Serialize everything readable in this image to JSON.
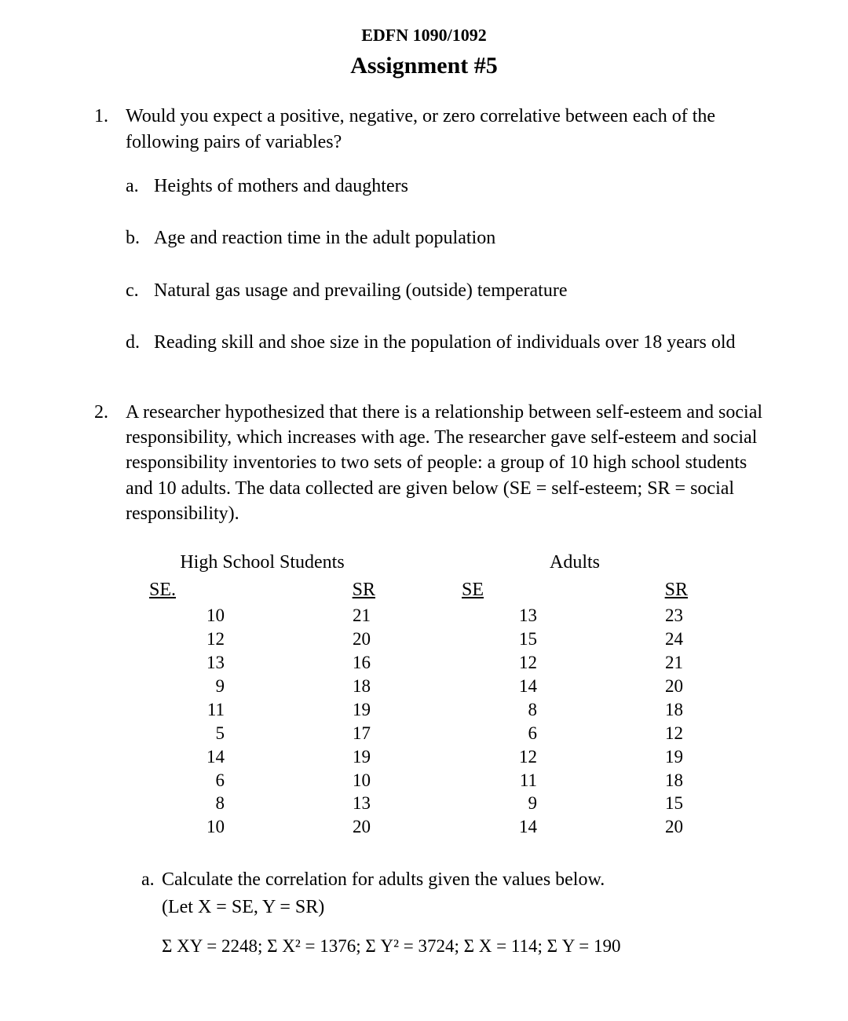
{
  "header": {
    "course_code": "EDFN 1090/1092",
    "title": "Assignment #5"
  },
  "questions": [
    {
      "number": "1.",
      "text": "Would you expect a positive, negative, or zero correlative between each of the following pairs of variables?",
      "subitems": [
        {
          "marker": "a.",
          "text": "Heights of mothers and daughters"
        },
        {
          "marker": "b.",
          "text": "Age and reaction time in the adult population"
        },
        {
          "marker": "c.",
          "text": "Natural gas usage and prevailing (outside) temperature"
        },
        {
          "marker": "d.",
          "text": "Reading skill and shoe size in the population of individuals over 18 years old"
        }
      ]
    },
    {
      "number": "2.",
      "text": "A researcher hypothesized that there is a relationship between self-esteem and social responsibility, which increases with age. The researcher gave self-esteem and social responsibility inventories to two sets of people: a group of 10 high school students and 10 adults. The data collected are given below (SE = self-esteem; SR = social responsibility)."
    }
  ],
  "tables": {
    "type": "table",
    "font_size": 23,
    "text_color": "#000000",
    "high_school": {
      "title": "High School Students",
      "columns": [
        "SE.",
        "SR"
      ],
      "rows": [
        [
          10,
          21
        ],
        [
          12,
          20
        ],
        [
          13,
          16
        ],
        [
          9,
          18
        ],
        [
          11,
          19
        ],
        [
          5,
          17
        ],
        [
          14,
          19
        ],
        [
          6,
          10
        ],
        [
          8,
          13
        ],
        [
          10,
          20
        ]
      ]
    },
    "adults": {
      "title": "Adults",
      "columns": [
        "SE",
        "SR"
      ],
      "rows": [
        [
          13,
          23
        ],
        [
          15,
          24
        ],
        [
          12,
          21
        ],
        [
          14,
          20
        ],
        [
          8,
          18
        ],
        [
          6,
          12
        ],
        [
          12,
          19
        ],
        [
          11,
          18
        ],
        [
          9,
          15
        ],
        [
          14,
          20
        ]
      ]
    }
  },
  "q2a": {
    "marker": "a.",
    "line1": "Calculate the correlation for adults given the values below.",
    "line2": "(Let X = SE, Y = SR)",
    "sums": "Σ XY = 2248;  Σ X² = 1376;   Σ Y² =  3724;   Σ X = 114; Σ Y = 190"
  },
  "style": {
    "background_color": "#ffffff",
    "text_color": "#000000",
    "font_family": "Times New Roman",
    "body_fontsize": 24,
    "title_fontsize": 30,
    "code_fontsize": 22
  }
}
